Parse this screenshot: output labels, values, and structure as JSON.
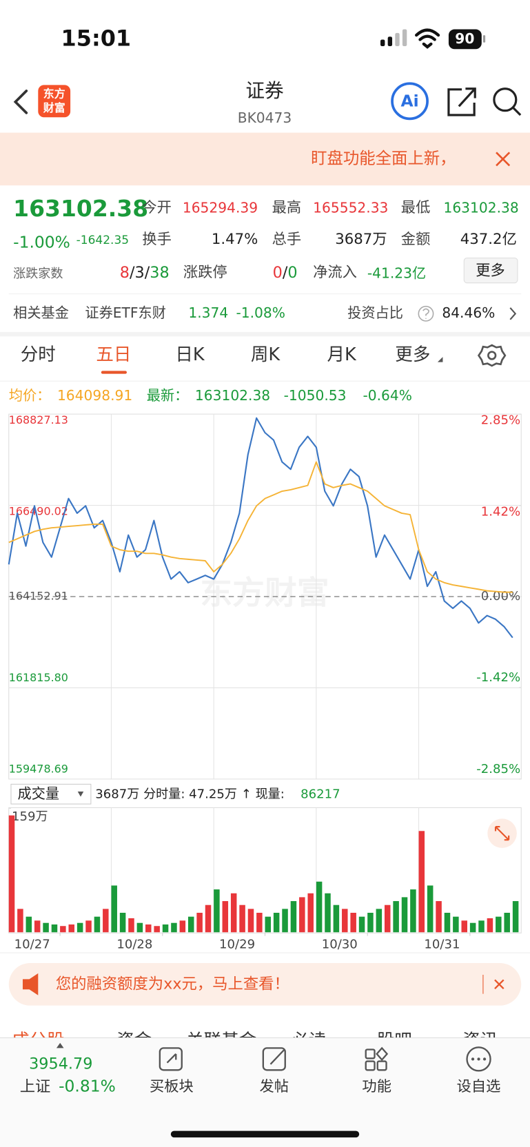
{
  "status_bar": {
    "time": "15:01",
    "battery": "90"
  },
  "header": {
    "logo_line1": "东方",
    "logo_line2": "财富",
    "title": "证券",
    "code": "BK0473",
    "ai": "Ai"
  },
  "notice": {
    "text": "盯盘功能全面上新，"
  },
  "quote": {
    "price": "163102.38",
    "change_pct": "-1.00%",
    "change": "-1642.35",
    "open": {
      "label": "今开",
      "value": "165294.39"
    },
    "high": {
      "label": "最高",
      "value": "165552.33"
    },
    "low": {
      "label": "最低",
      "value": "163102.38"
    },
    "turnover_rate": {
      "label": "换手",
      "value": "1.47%"
    },
    "volume": {
      "label": "总手",
      "value": "3687万"
    },
    "amount": {
      "label": "金额",
      "value": "437.2亿"
    },
    "breadth": {
      "label": "涨跌家数",
      "up": "8",
      "flat": "3",
      "down": "38",
      "separator": "/"
    },
    "limit": {
      "label": "涨跌停",
      "up": "0",
      "down": "0"
    },
    "net_inflow": {
      "label": "净流入",
      "value": "-41.23亿"
    },
    "more": "更多"
  },
  "fund": {
    "label": "相关基金",
    "name": "证券ETF东财",
    "price": "1.374",
    "change": "-1.08%",
    "ratio_label": "投资占比",
    "ratio": "84.46%"
  },
  "tabs": [
    "分时",
    "五日",
    "日K",
    "周K",
    "月K",
    "更多"
  ],
  "chart_data": {
    "type": "line",
    "summary": {
      "avg_label": "均价：",
      "avg": "164098.91",
      "latest_label": "最新：",
      "latest": "163102.38",
      "change": "-1050.53",
      "change_pct": "-0.64%"
    },
    "x": [
      0,
      20,
      40,
      60,
      80,
      100,
      120,
      140,
      160,
      180,
      200,
      220,
      240,
      260,
      280,
      300,
      320,
      340,
      360,
      380,
      400,
      420,
      440,
      460,
      480,
      500,
      520,
      540,
      560,
      580,
      600,
      620,
      640,
      660,
      680,
      700,
      720,
      740,
      760,
      780,
      800,
      820,
      840,
      860,
      880,
      900,
      920,
      940,
      960,
      980,
      1000,
      1020,
      1040,
      1060,
      1080,
      1100,
      1120,
      1140,
      1160,
      1180
    ],
    "xlim": [
      0,
      1200
    ],
    "xticks": [
      {
        "value": 120,
        "label": "10/27"
      },
      {
        "value": 360,
        "label": "10/28"
      },
      {
        "value": 600,
        "label": "10/29"
      },
      {
        "value": 840,
        "label": "10/30"
      },
      {
        "value": 1080,
        "label": "10/31"
      }
    ],
    "ylim": [
      159478.69,
      168827.13
    ],
    "yticks": [
      168827.13,
      166490.02,
      164152.91,
      {
        "value": 161815.8,
        "label": "161815.80"
      },
      159478.69
    ],
    "y2lim": [
      -2.85,
      2.85
    ],
    "y2ticks": [
      {
        "value": 2.85,
        "label": "2.85%"
      },
      {
        "value": 1.42,
        "label": "1.42%"
      },
      {
        "value": 0,
        "label": "0.00%"
      },
      {
        "value": -1.42,
        "label": "-1.42%"
      },
      {
        "value": -2.85,
        "label": "-2.85%"
      }
    ],
    "series": [
      {
        "color": "#3a76c4",
        "values": [
          164977,
          166289,
          165446,
          166477,
          165540,
          165165,
          165914,
          166664,
          166289,
          166477,
          165914,
          166102,
          165540,
          164790,
          165727,
          165165,
          165352,
          166102,
          165165,
          164602,
          164790,
          164509,
          164602,
          164696,
          164602,
          164977,
          165540,
          166289,
          167788,
          168725,
          168350,
          168163,
          167601,
          167413,
          167976,
          168257,
          167976,
          166852,
          166477,
          167039,
          167413,
          167226,
          166477,
          165165,
          165727,
          165352,
          164977,
          164602,
          165352,
          164415,
          164790,
          164040,
          163853,
          164040,
          163853,
          163478,
          163666,
          163572,
          163384,
          163102.38
        ]
      },
      {
        "color": "#f5b335",
        "values": [
          165540,
          165633,
          165727,
          165821,
          165877,
          165914,
          165933,
          165952,
          165970,
          165989,
          166008,
          166008,
          165446,
          165352,
          165315,
          165315,
          165259,
          165259,
          165221,
          165165,
          165127,
          165109,
          165090,
          165071,
          164790,
          164977,
          165259,
          165633,
          166102,
          166477,
          166664,
          166758,
          166852,
          166889,
          166945,
          167001,
          167601,
          167039,
          166945,
          167001,
          167039,
          166945,
          166852,
          166664,
          166477,
          166383,
          166289,
          166252,
          165352,
          164790,
          164602,
          164509,
          164452,
          164415,
          164377,
          164340,
          164302,
          164284,
          164265,
          164265
        ]
      }
    ],
    "volume": {
      "title": "成交量",
      "info": "3687万 分时量: 47.25万 ↑ 现量:",
      "current": "86217",
      "ylim": [
        0,
        159
      ],
      "yticks": [
        {
          "value": 159,
          "label": "159万"
        }
      ],
      "values": [
        150,
        30,
        20,
        15,
        12,
        10,
        8,
        10,
        12,
        15,
        20,
        30,
        60,
        25,
        18,
        12,
        10,
        8,
        10,
        12,
        15,
        20,
        25,
        35,
        55,
        40,
        50,
        35,
        30,
        25,
        20,
        25,
        30,
        40,
        45,
        50,
        65,
        50,
        35,
        30,
        25,
        20,
        25,
        30,
        35,
        40,
        45,
        55,
        130,
        60,
        40,
        25,
        20,
        15,
        12,
        15,
        18,
        20,
        25,
        40
      ]
    },
    "watermark": "东方财富"
  },
  "promo": {
    "text": "您的融资额度为xx元，马上查看！"
  },
  "sub_tabs": [
    "成分股",
    "资金",
    "关联基金",
    "必读",
    "股吧",
    "资讯"
  ],
  "bottom_bar": {
    "index_value": "3954.79",
    "index_name": "上证",
    "index_change": "-0.81%",
    "items": [
      "买板块",
      "发帖",
      "功能",
      "设自选"
    ]
  }
}
